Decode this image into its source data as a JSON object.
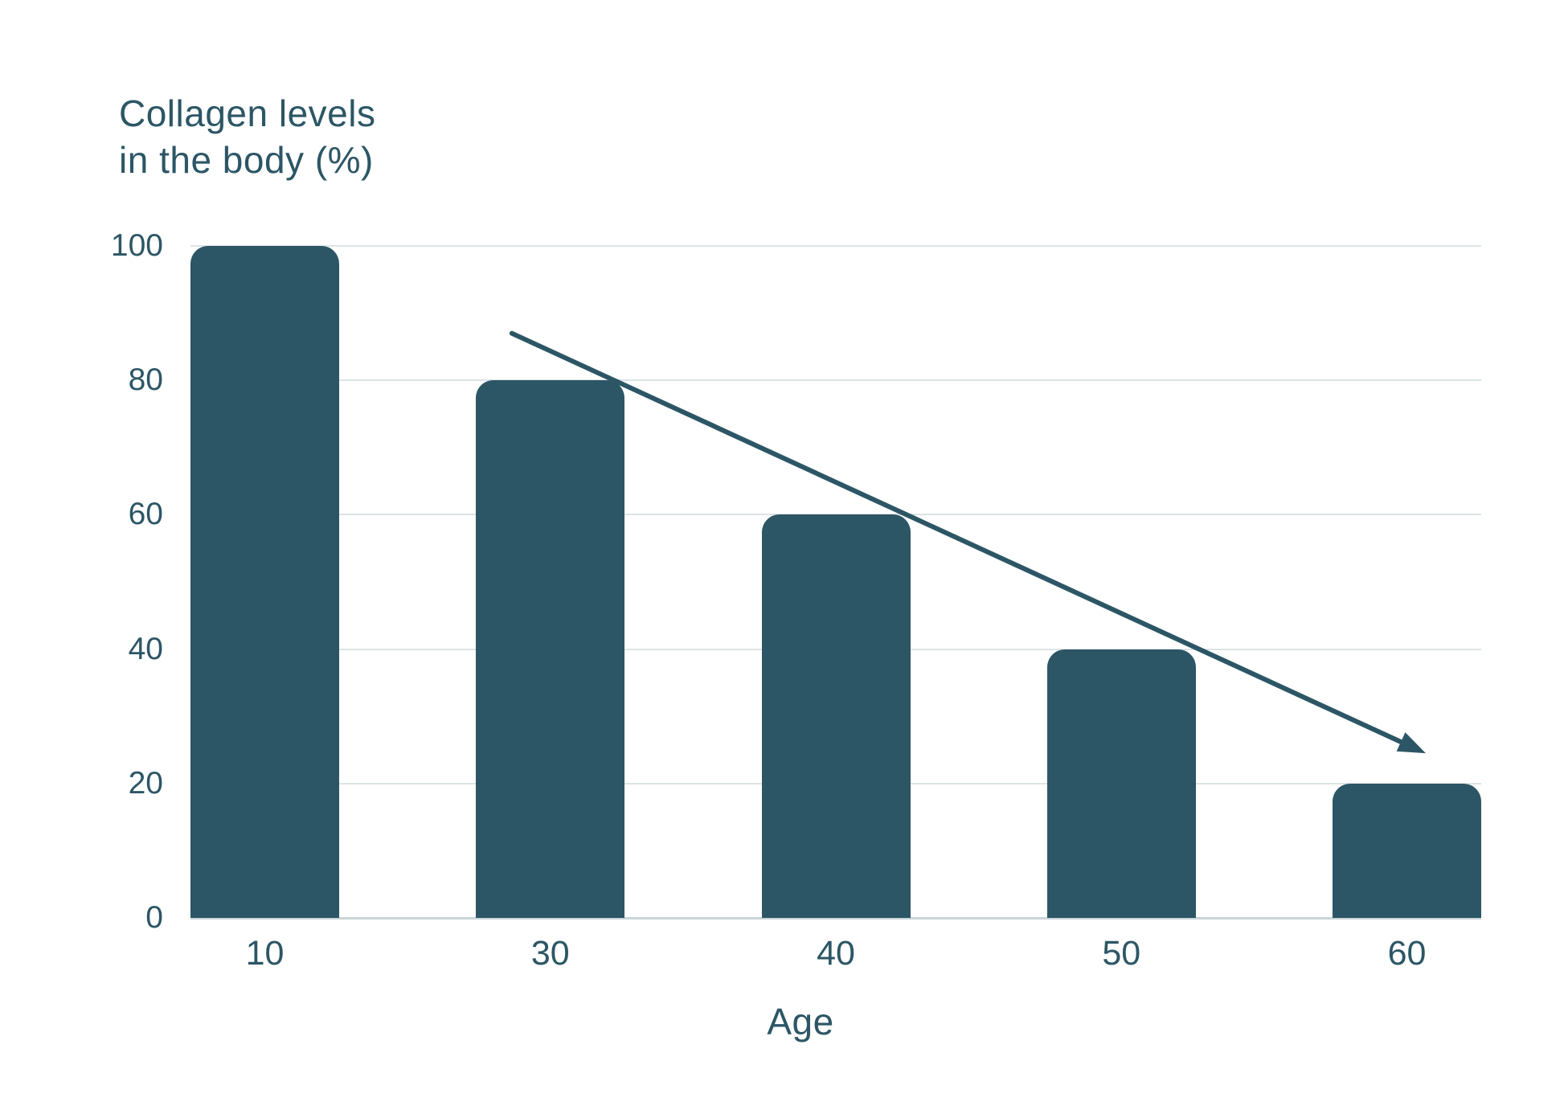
{
  "chart_data": {
    "type": "bar",
    "title": "Collagen levels in the body (%)",
    "title_lines": [
      "Collagen levels",
      "in the body (%)"
    ],
    "categories": [
      "10",
      "30",
      "40",
      "50",
      "60"
    ],
    "values": [
      100,
      80,
      60,
      40,
      20
    ],
    "xlabel": "Age",
    "ylabel": "Collagen levels in the body (%)",
    "yticks": [
      0,
      20,
      40,
      60,
      80,
      100
    ],
    "ylim": [
      0,
      100
    ],
    "grid": true,
    "legend": "none",
    "trend_arrow": {
      "x1_frac": 0.249,
      "y1_value": 87,
      "x2_frac": 0.957,
      "y2_value": 24.5
    },
    "colors": {
      "bar": "#2c5665",
      "text": "#2c5665",
      "arrow": "#2c5665",
      "gridline": "#dde4e6",
      "baseline": "#c9d5d9",
      "background": "#ffffff"
    }
  }
}
